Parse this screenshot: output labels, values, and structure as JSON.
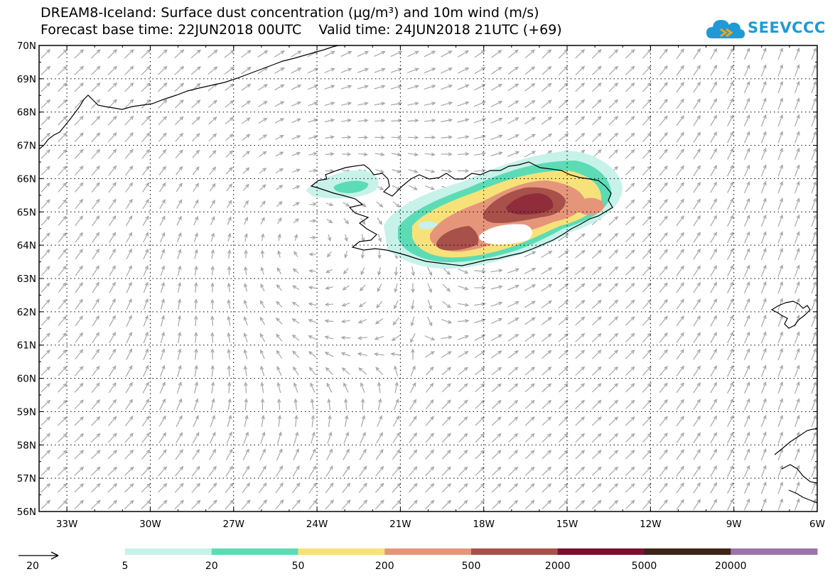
{
  "header": {
    "title_line1": "DREAM8-Iceland: Surface dust concentration (µg/m³) and 10m wind (m/s)",
    "title_line2": "Forecast base time: 22JUN2018 00UTC    Valid time: 24JUN2018 21UTC (+69)"
  },
  "logo": {
    "text": "SEEVCCC",
    "icon": "cloud-logo-icon",
    "color": "#1f9ad6"
  },
  "map": {
    "lat_labels": [
      "56N",
      "57N",
      "58N",
      "59N",
      "60N",
      "61N",
      "62N",
      "63N",
      "64N",
      "65N",
      "66N",
      "67N",
      "68N",
      "69N",
      "70N"
    ],
    "lon_labels": [
      "33W",
      "30W",
      "27W",
      "24W",
      "21W",
      "18W",
      "15W",
      "12W",
      "9W",
      "6W"
    ],
    "arrow_color": "#a6a6a6"
  },
  "legend": {
    "wind_reference_value": "20",
    "colorbar_labels": [
      "5",
      "20",
      "50",
      "200",
      "500",
      "2000",
      "5000",
      "20000"
    ],
    "colorbar_colors": [
      "#c7f2ea",
      "#5cdcb5",
      "#f7e27a",
      "#e5967a",
      "#a8504a",
      "#7a1030",
      "#3d2418",
      "#9a76a8"
    ]
  }
}
